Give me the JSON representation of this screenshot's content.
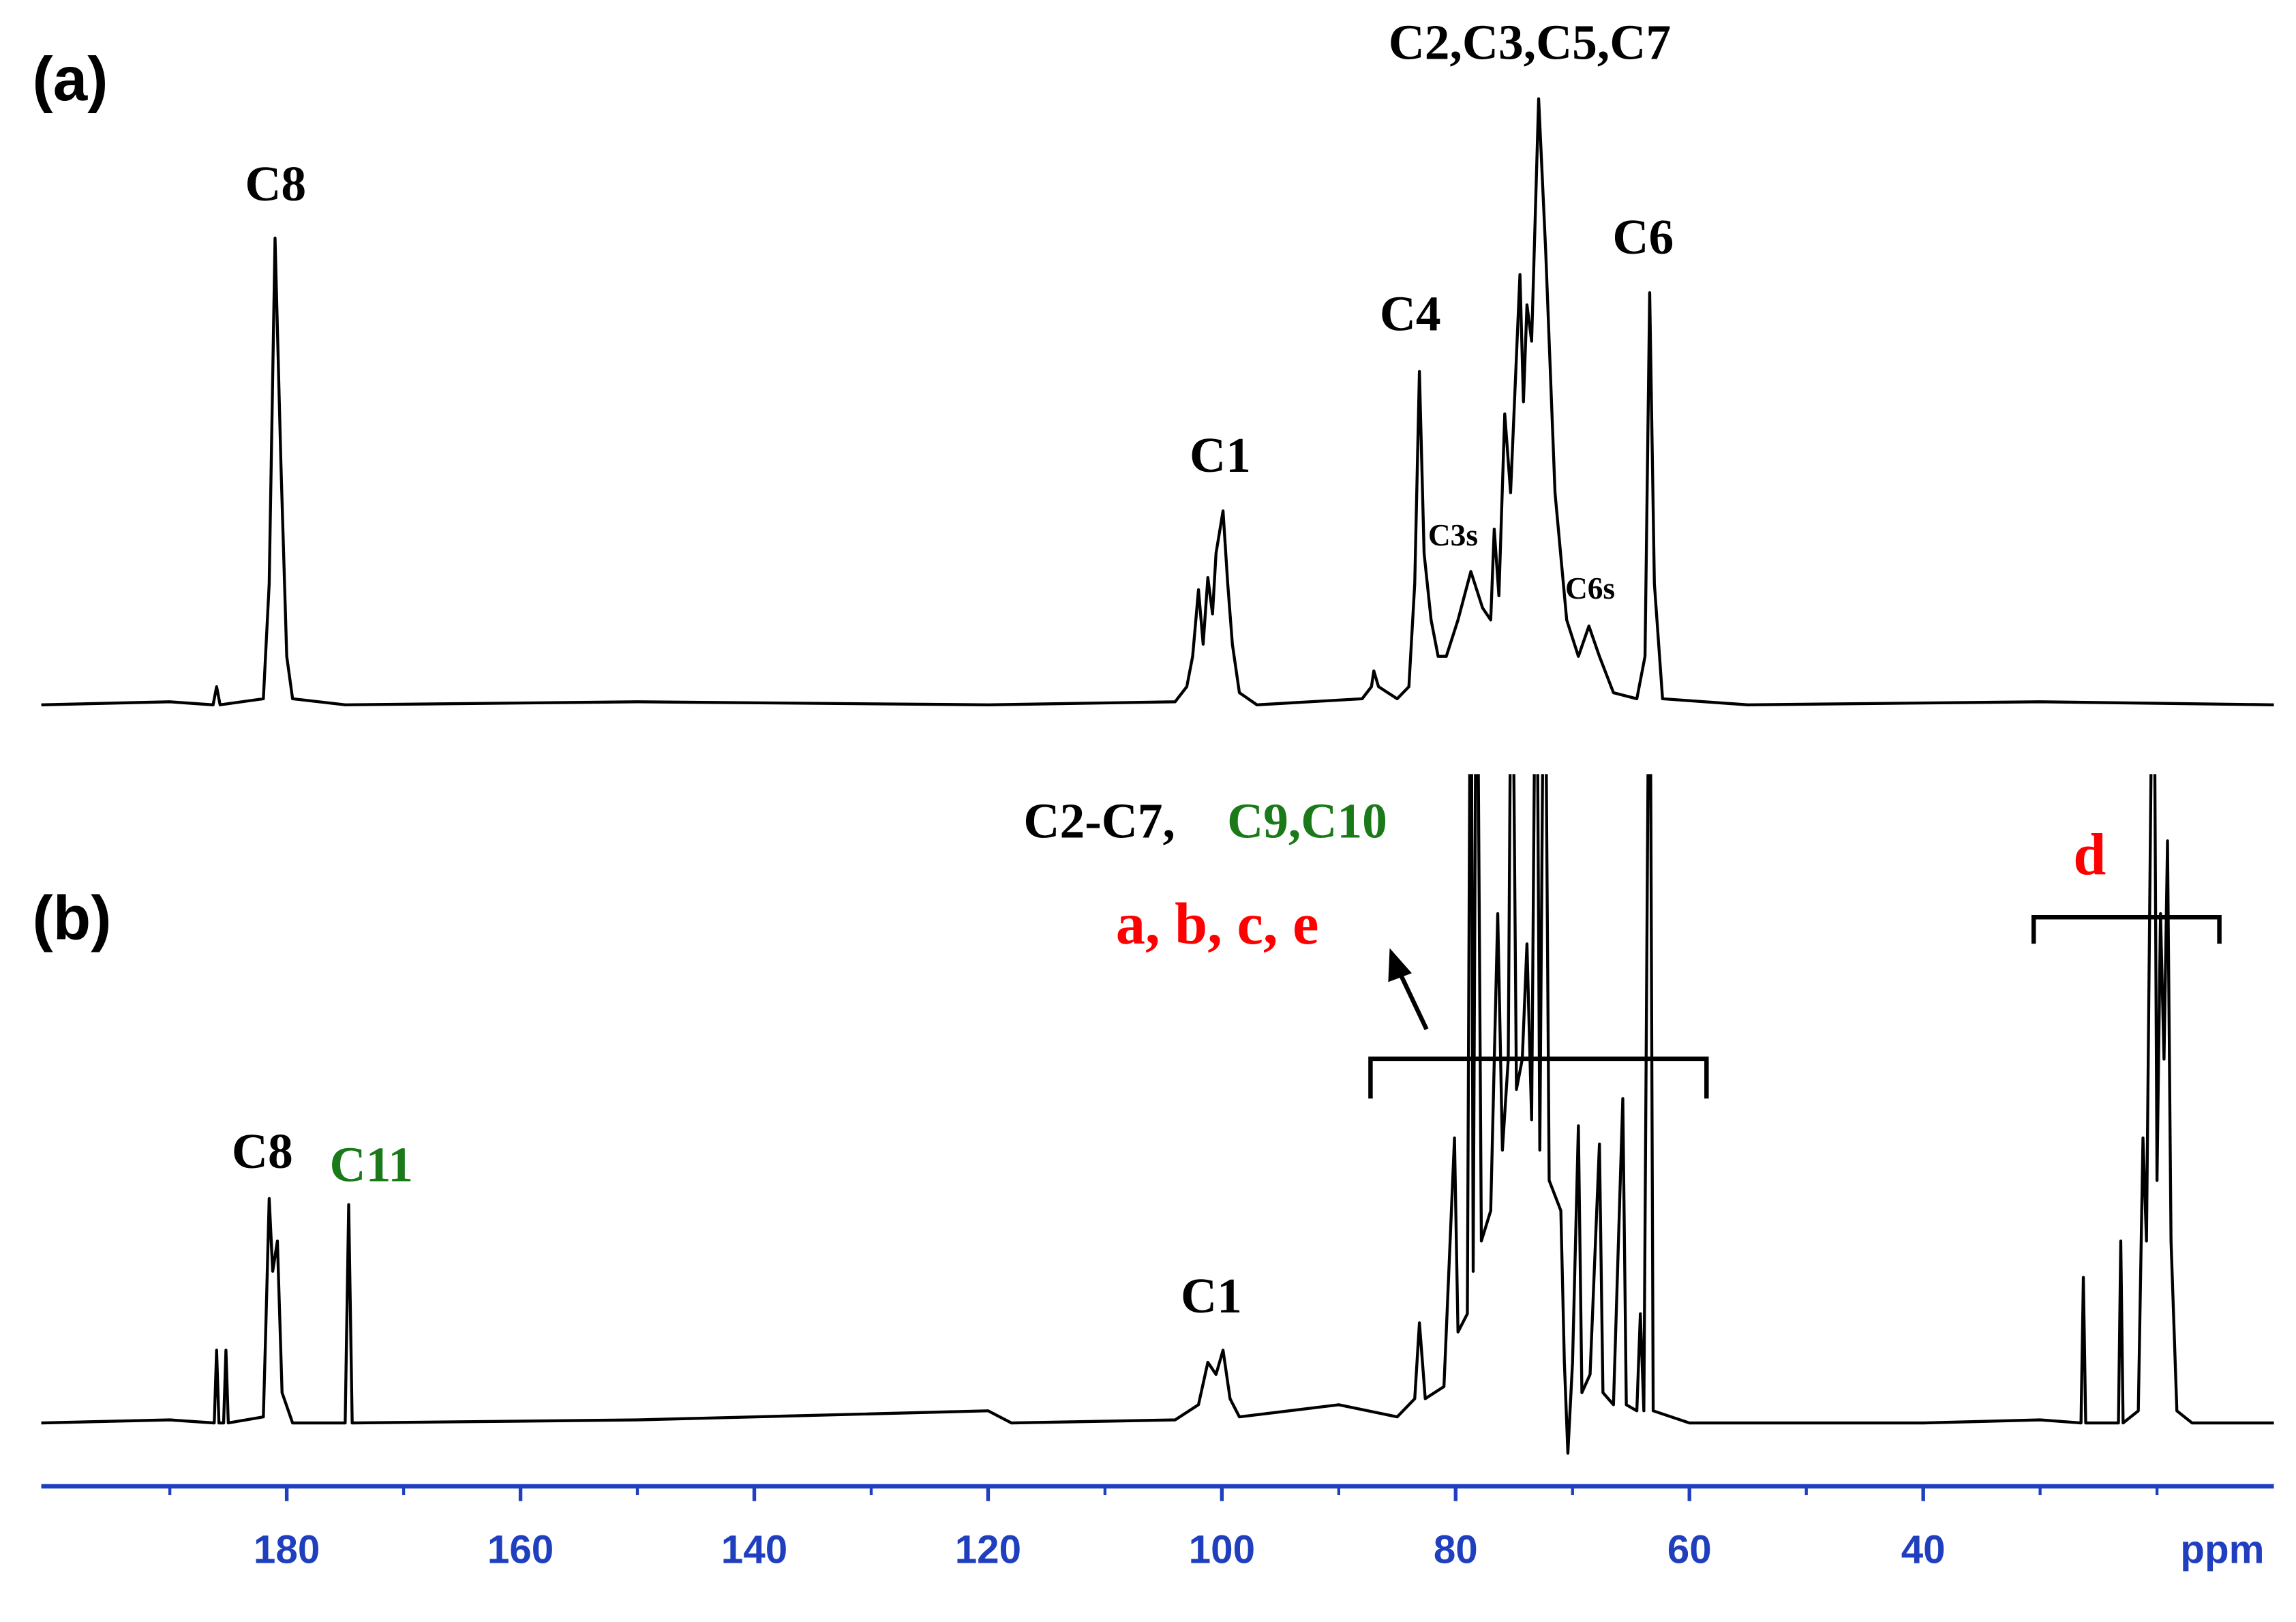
{
  "chart_data": [
    {
      "type": "line",
      "panel_label": "(a)",
      "color": "#000000",
      "xlim": [
        201,
        10
      ],
      "ylim": [
        0,
        100
      ],
      "x": [
        201,
        190,
        186.3,
        186,
        185.7,
        182,
        181.5,
        181,
        180.5,
        180,
        179.5,
        175,
        150,
        120,
        104,
        103,
        102.5,
        102,
        101.6,
        101.2,
        100.8,
        100.5,
        99.9,
        99.5,
        99.1,
        98.5,
        97,
        88,
        87.2,
        87,
        86.6,
        85,
        84,
        83.5,
        83.1,
        82.7,
        82.1,
        81.5,
        80.8,
        79.8,
        78.7,
        77.7,
        77,
        76.7,
        76.3,
        75.8,
        75.3,
        74.5,
        74.2,
        73.9,
        73.5,
        72.9,
        72.3,
        71.5,
        70.5,
        69.5,
        68.6,
        67.7,
        66.5,
        64.5,
        63.8,
        63.4,
        63,
        62.3,
        55,
        30,
        10
      ],
      "values": [
        0,
        0.5,
        0,
        3,
        0,
        1,
        20,
        77,
        40,
        8,
        1,
        0,
        0.5,
        0,
        0.5,
        3,
        8,
        19,
        10,
        21,
        15,
        25,
        32,
        20,
        10,
        2,
        0,
        1,
        3,
        5.6,
        3,
        1,
        3,
        20,
        55,
        25,
        14,
        8,
        8,
        14,
        22,
        16,
        14,
        29,
        18,
        48,
        35,
        71,
        50,
        66,
        60,
        100,
        75,
        35,
        14,
        8,
        13,
        8,
        2,
        1,
        8,
        68,
        20,
        1,
        0,
        0.5,
        0
      ],
      "annotations": [
        {
          "text": "C8",
          "color": "#000000"
        },
        {
          "text": "C1",
          "color": "#000000"
        },
        {
          "text": "C4",
          "color": "#000000"
        },
        {
          "text": "C3s",
          "color": "#000000"
        },
        {
          "text": "C2,C3,C5,C7",
          "color": "#000000"
        },
        {
          "text": "C6s",
          "color": "#000000"
        },
        {
          "text": "C6",
          "color": "#000000"
        }
      ]
    },
    {
      "type": "line",
      "panel_label": "(b)",
      "color": "#000000",
      "xlim": [
        201,
        10
      ],
      "ylim": [
        0,
        107
      ],
      "xticks": [
        180,
        160,
        140,
        120,
        100,
        80,
        60,
        40
      ],
      "xminorticks": [
        190,
        170,
        150,
        130,
        110,
        90,
        70,
        50,
        30,
        20
      ],
      "xlabel": "ppm",
      "axis_color": "#1f3fbf",
      "x": [
        201,
        190,
        186.2,
        186,
        185.8,
        185.4,
        185.2,
        185,
        182,
        181.8,
        181.5,
        181.2,
        180.8,
        180.4,
        179.5,
        175,
        174.7,
        174.4,
        150,
        120,
        118,
        104,
        102,
        101.2,
        100.5,
        99.9,
        99.3,
        98.5,
        90,
        85,
        83.5,
        83.1,
        82.6,
        81,
        80.1,
        79.8,
        79,
        78.7,
        78.5,
        78.2,
        77.8,
        77,
        76.4,
        76,
        75.5,
        75.2,
        74.8,
        74.3,
        73.9,
        73.5,
        73.1,
        72.8,
        72.4,
        72,
        71,
        70.7,
        70.4,
        70,
        69.5,
        69.2,
        68.5,
        67.7,
        67.4,
        66.5,
        65.7,
        65.4,
        64.5,
        64.2,
        63.9,
        63.4,
        63.1,
        60,
        40,
        30,
        26.5,
        26.3,
        26.1,
        23.3,
        23.1,
        22.9,
        21.6,
        21.2,
        20.9,
        20.3,
        20,
        19.7,
        19.4,
        19.1,
        18.8,
        18.3,
        17,
        10
      ],
      "values": [
        0,
        0.5,
        0,
        12,
        0,
        0,
        12,
        0,
        1,
        15,
        37,
        25,
        30,
        5,
        0,
        0,
        36,
        0,
        0.5,
        2,
        0,
        0.5,
        3,
        10,
        8,
        12,
        4,
        1,
        3,
        1,
        4,
        16.5,
        4,
        6,
        47,
        15,
        18,
        150,
        25,
        150,
        30,
        35,
        84,
        45,
        60,
        150,
        55,
        60,
        79,
        50,
        150,
        45,
        150,
        40,
        35,
        10,
        -5,
        10,
        49,
        5,
        8,
        46,
        5,
        3,
        53.5,
        3,
        2,
        18,
        2,
        150,
        2,
        0,
        0,
        0.5,
        0,
        24,
        0,
        0,
        30,
        0,
        2,
        47,
        30,
        150,
        40,
        84,
        60,
        96,
        30,
        2,
        0,
        0
      ],
      "annotations": [
        {
          "text": "C8",
          "color": "#000000"
        },
        {
          "text": "C11",
          "color": "#1a7a1a"
        },
        {
          "text": "C1",
          "color": "#000000"
        },
        {
          "text": "C2-C7,",
          "color": "#000000"
        },
        {
          "text": "C9,C10",
          "color": "#1a7a1a"
        },
        {
          "text": "a, b, c, e",
          "color": "#ff0000"
        },
        {
          "text": "d",
          "color": "#ff0000"
        }
      ]
    }
  ]
}
